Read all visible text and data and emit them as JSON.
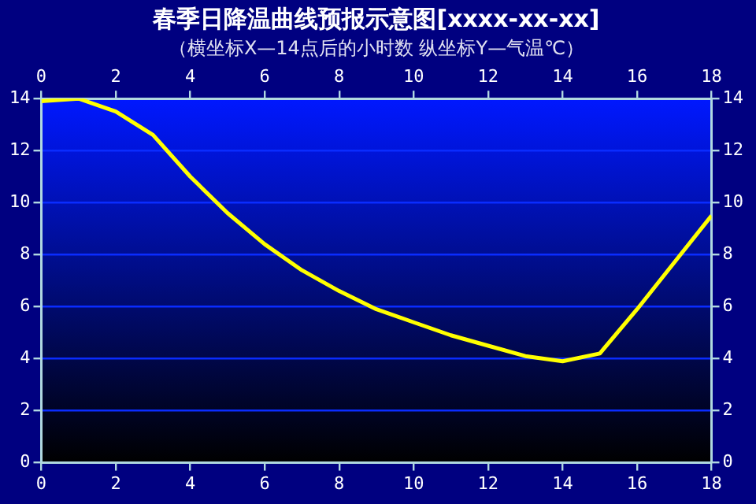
{
  "chart_data": {
    "type": "line",
    "title": "春季日降温曲线预报示意图[xxxx-xx-xx]",
    "subtitle": "（横坐标X—14点后的小时数 纵坐标Y—气温℃）",
    "x": [
      0,
      1,
      2,
      3,
      4,
      5,
      6,
      7,
      8,
      9,
      10,
      11,
      12,
      13,
      14,
      15,
      16,
      17,
      18
    ],
    "series": [
      {
        "color": "#ffff00",
        "values": [
          13.9,
          14.0,
          13.5,
          12.6,
          11.0,
          9.6,
          8.4,
          7.4,
          6.6,
          5.9,
          5.4,
          4.9,
          4.5,
          4.1,
          3.9,
          4.2,
          5.9,
          7.7,
          9.5
        ]
      }
    ],
    "xlim": [
      0,
      18
    ],
    "xticks": [
      0,
      2,
      4,
      6,
      8,
      10,
      12,
      14,
      16,
      18
    ],
    "x2lim": [
      0,
      18
    ],
    "x2ticks": [
      0,
      2,
      4,
      6,
      8,
      10,
      12,
      14,
      16,
      18
    ],
    "ylim": [
      0,
      14
    ],
    "yticks": [
      0,
      2,
      4,
      6,
      8,
      10,
      12,
      14
    ],
    "y2lim": [
      0,
      14
    ],
    "y2ticks": [
      0,
      2,
      4,
      6,
      8,
      10,
      12,
      14
    ],
    "grid": "y",
    "legend": false,
    "marker": "none",
    "line_style": "solid"
  }
}
